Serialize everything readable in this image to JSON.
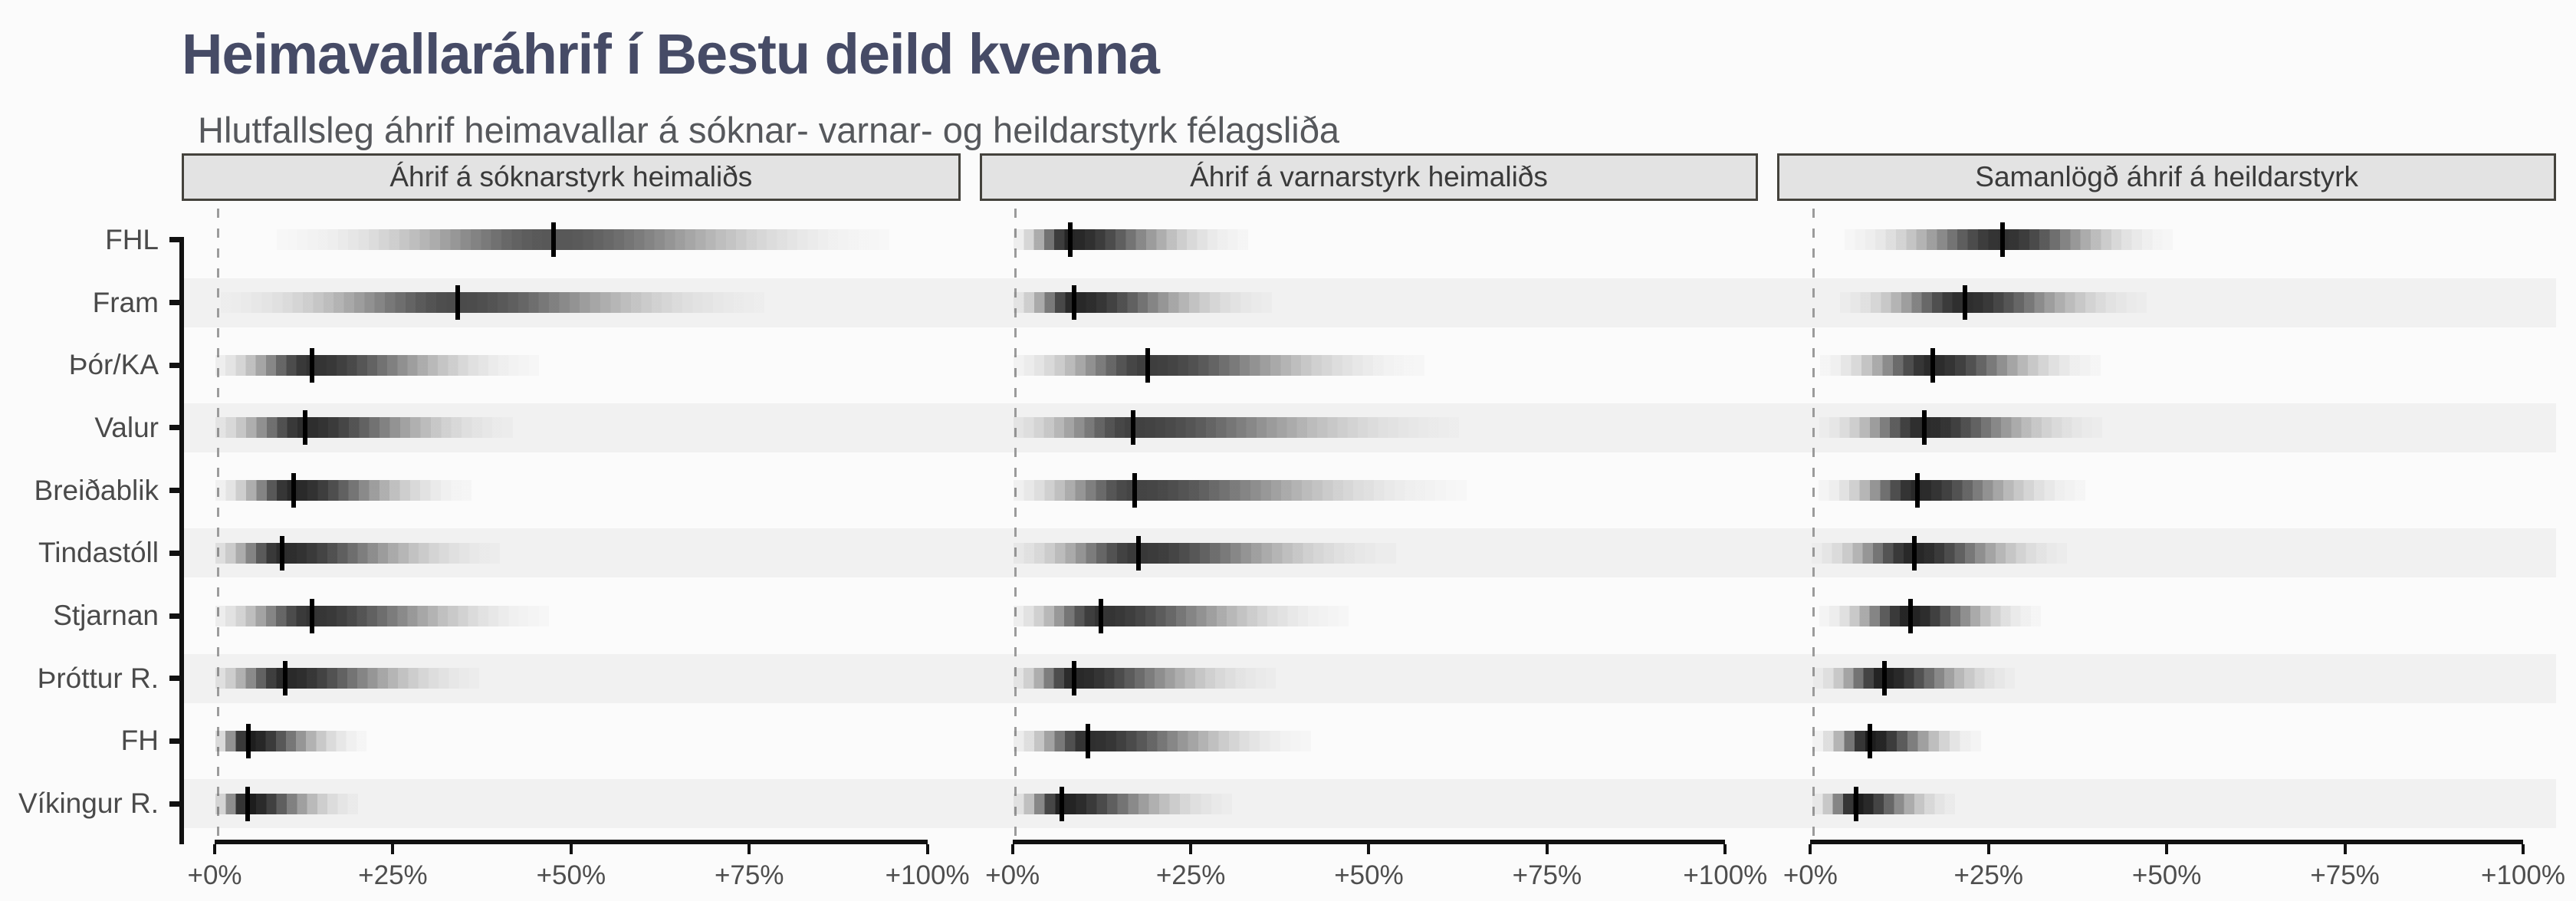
{
  "title": "Heimavallaráhrif í Bestu deild kvenna",
  "subtitle": "Hlutfallsleg áhrif heimavallar á sóknar- varnar- og heildarstyrk félagsliða",
  "teams": [
    "FHL",
    "Fram",
    "Þór/KA",
    "Valur",
    "Breiðablik",
    "Tindastóll",
    "Stjarnan",
    "Þróttur R.",
    "FH",
    "Víkingur R."
  ],
  "axis": {
    "tick_labels": [
      "+0%",
      "+25%",
      "+50%",
      "+75%",
      "+100%"
    ],
    "tick_values": [
      0,
      25,
      50,
      75,
      100
    ]
  },
  "colors": {
    "title": "#464b66",
    "subtitle": "#56585c",
    "header_bg": "#e3e3e3",
    "header_border": "#44423c",
    "band": "#f1f1f1",
    "background": "#fbfbfb",
    "axis": "#111111",
    "zero_line": "#9b9b9b",
    "ink": "#0a0a0a"
  },
  "chart_data": {
    "type": "scatter",
    "variant": "gradient-interval strips with median tick (ggdist style)",
    "categories": [
      "FHL",
      "Fram",
      "Þór/KA",
      "Valur",
      "Breiðablik",
      "Tindastóll",
      "Stjarnan",
      "Þróttur R.",
      "FH",
      "Víkingur R."
    ],
    "title": "Heimavallaráhrif í Bestu deild kvenna",
    "subtitle": "Hlutfallsleg áhrif heimavallar á sóknar- varnar- og heildarstyrk félagsliða",
    "x_unit": "percent increase",
    "xlim": [
      0,
      100
    ],
    "x_ticks": [
      0,
      25,
      50,
      75,
      100
    ],
    "x_tick_labels": [
      "+0%",
      "+25%",
      "+50%",
      "+75%",
      "+100%"
    ],
    "zebra_rows": [
      1,
      3,
      5,
      7,
      9
    ],
    "panels": [
      {
        "title": "Áhrif á sóknarstyrk heimaliðs",
        "points": [
          {
            "team": "FHL",
            "median": 47.5,
            "spread_left": 14.0,
            "spread_right": 17.0
          },
          {
            "team": "Fram",
            "median": 34.0,
            "spread_left": 12.0,
            "spread_right": 15.5
          },
          {
            "team": "Þór/KA",
            "median": 13.3,
            "spread_left": 5.5,
            "spread_right": 11.5
          },
          {
            "team": "Valur",
            "median": 12.4,
            "spread_left": 5.2,
            "spread_right": 10.5
          },
          {
            "team": "Breiðablik",
            "median": 10.7,
            "spread_left": 4.2,
            "spread_right": 9.0
          },
          {
            "team": "Tindastóll",
            "median": 9.1,
            "spread_left": 4.0,
            "spread_right": 11.0
          },
          {
            "team": "Stjarnan",
            "median": 13.3,
            "spread_left": 5.6,
            "spread_right": 12.0
          },
          {
            "team": "Þróttur R.",
            "median": 9.6,
            "spread_left": 4.2,
            "spread_right": 9.8
          },
          {
            "team": "FH",
            "median": 4.3,
            "spread_left": 2.0,
            "spread_right": 6.0
          },
          {
            "team": "Víkingur R.",
            "median": 4.2,
            "spread_left": 1.9,
            "spread_right": 5.6
          }
        ]
      },
      {
        "title": "Áhrif á varnarstyrk heimaliðs",
        "points": [
          {
            "team": "FHL",
            "median": 7.7,
            "spread_left": 3.1,
            "spread_right": 9.0
          },
          {
            "team": "Fram",
            "median": 8.3,
            "spread_left": 3.4,
            "spread_right": 10.0
          },
          {
            "team": "Þór/KA",
            "median": 18.7,
            "spread_left": 7.5,
            "spread_right": 14.0
          },
          {
            "team": "Valur",
            "median": 16.6,
            "spread_left": 7.0,
            "spread_right": 16.5
          },
          {
            "team": "Breiðablik",
            "median": 16.8,
            "spread_left": 7.0,
            "spread_right": 16.8
          },
          {
            "team": "Tindastóll",
            "median": 17.4,
            "spread_left": 7.0,
            "spread_right": 13.0
          },
          {
            "team": "Stjarnan",
            "median": 12.1,
            "spread_left": 5.0,
            "spread_right": 12.5
          },
          {
            "team": "Þróttur R.",
            "median": 8.3,
            "spread_left": 3.4,
            "spread_right": 10.2
          },
          {
            "team": "FH",
            "median": 10.2,
            "spread_left": 4.2,
            "spread_right": 11.3
          },
          {
            "team": "Víkingur R.",
            "median": 6.5,
            "spread_left": 2.7,
            "spread_right": 8.6
          }
        ]
      },
      {
        "title": "Samanlögð áhrif á heildarstyrk",
        "points": [
          {
            "team": "FHL",
            "median": 26.8,
            "spread_left": 8.0,
            "spread_right": 8.6
          },
          {
            "team": "Fram",
            "median": 21.4,
            "spread_left": 6.3,
            "spread_right": 9.2
          },
          {
            "team": "Þór/KA",
            "median": 16.9,
            "spread_left": 5.7,
            "spread_right": 8.5
          },
          {
            "team": "Valur",
            "median": 15.7,
            "spread_left": 5.3,
            "spread_right": 9.0
          },
          {
            "team": "Breiðablik",
            "median": 14.7,
            "spread_left": 5.0,
            "spread_right": 8.5
          },
          {
            "team": "Tindastóll",
            "median": 14.3,
            "spread_left": 5.2,
            "spread_right": 7.7
          },
          {
            "team": "Stjarnan",
            "median": 13.7,
            "spread_left": 4.6,
            "spread_right": 6.6
          },
          {
            "team": "Þróttur R.",
            "median": 10.0,
            "spread_left": 3.6,
            "spread_right": 6.6
          },
          {
            "team": "FH",
            "median": 8.0,
            "spread_left": 2.9,
            "spread_right": 5.6
          },
          {
            "team": "Víkingur R.",
            "median": 6.0,
            "spread_left": 2.2,
            "spread_right": 5.0
          }
        ]
      }
    ]
  }
}
